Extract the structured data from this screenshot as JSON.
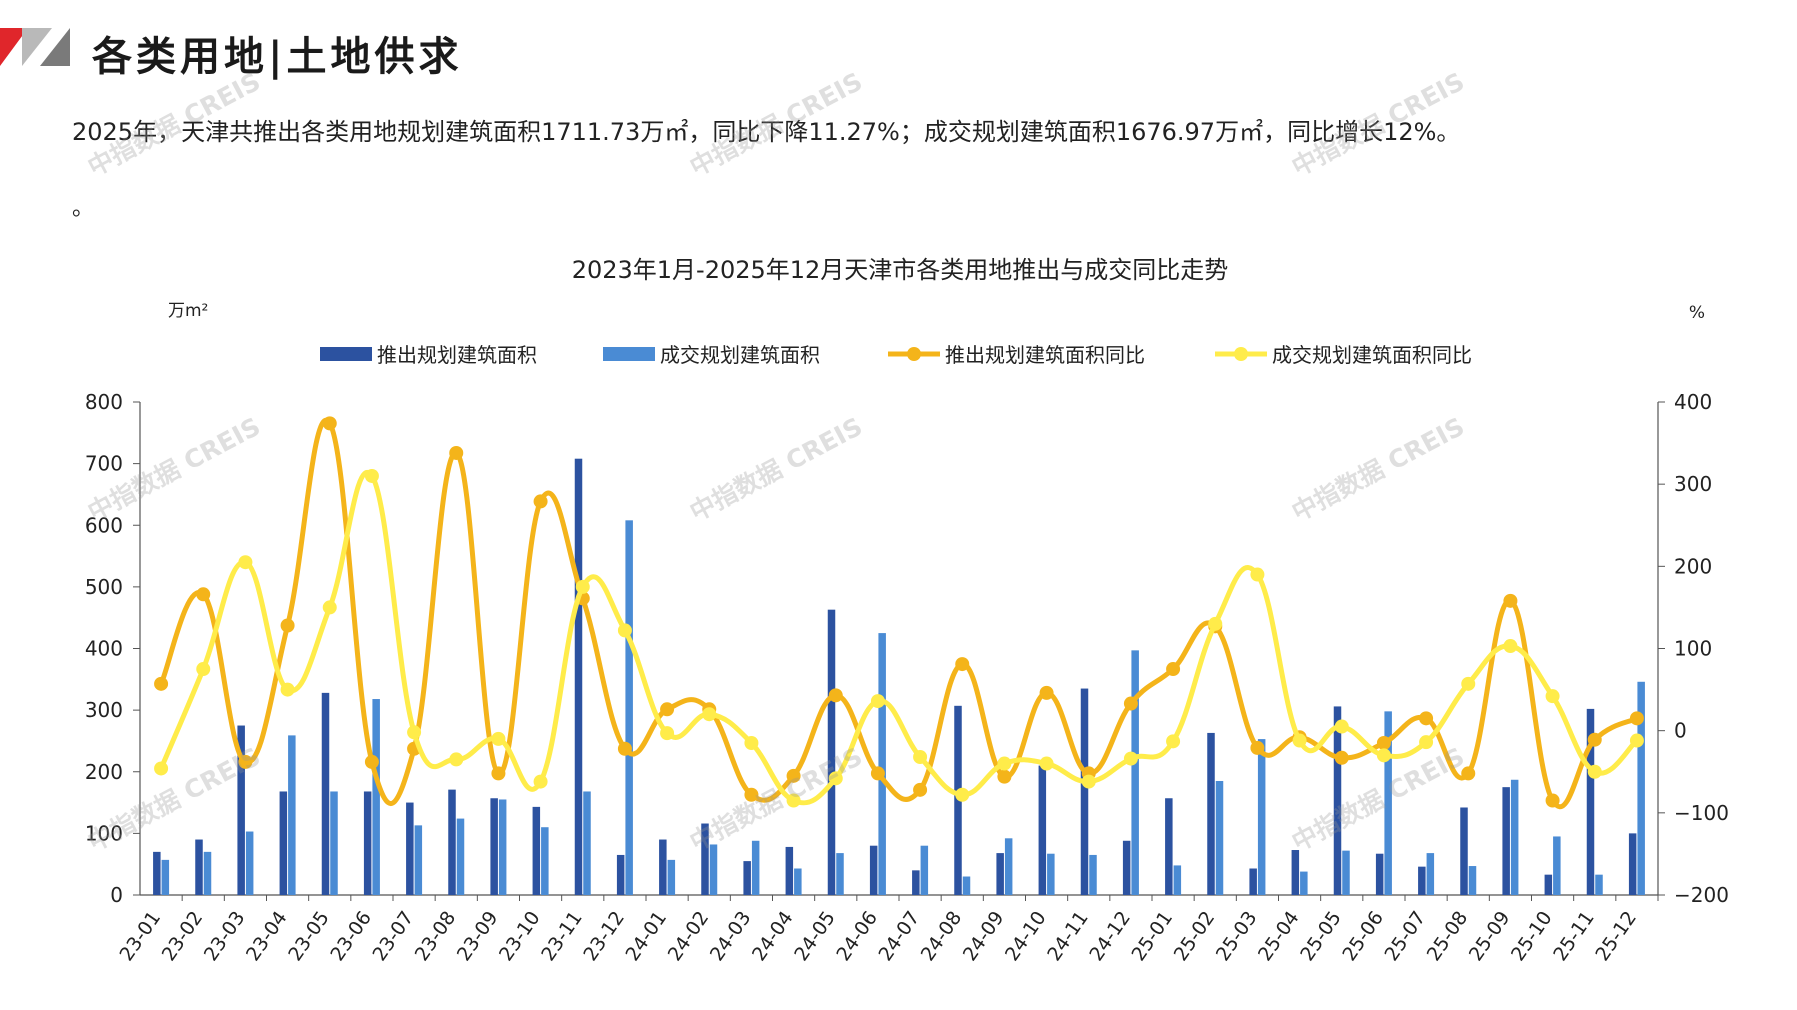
{
  "header": {
    "title": "各类用地|土地供求"
  },
  "summary": "2025年，天津共推出各类用地规划建筑面积1711.73万㎡，同比下降11.27%；成交规划建筑面积1676.97万㎡，同比增长12%。",
  "summary_tail": "。",
  "watermark": "中指数据 CREIS",
  "colors": {
    "supply_bar": "#2c52a0",
    "deal_bar": "#4a8bd4",
    "supply_yoy": "#f4b41a",
    "deal_yoy": "#ffec4a",
    "brand_red": "#e0262b"
  },
  "chart_data": {
    "type": "bar",
    "title": "2023年1月-2025年12月天津市各类用地推出与成交同比走势",
    "ylabel_left": "万m²",
    "ylabel_right": "%",
    "ylim_left": [
      0,
      800
    ],
    "yticks_left": [
      0,
      100,
      200,
      300,
      400,
      500,
      600,
      700,
      800
    ],
    "ylim_right": [
      -200,
      400
    ],
    "yticks_right": [
      -200,
      -100,
      0,
      100,
      200,
      300,
      400
    ],
    "legend_position": "top",
    "grid": false,
    "categories": [
      "23-01",
      "23-02",
      "23-03",
      "23-04",
      "23-05",
      "23-06",
      "23-07",
      "23-08",
      "23-09",
      "23-10",
      "23-11",
      "23-12",
      "24-01",
      "24-02",
      "24-03",
      "24-04",
      "24-05",
      "24-06",
      "24-07",
      "24-08",
      "24-09",
      "24-10",
      "24-11",
      "24-12",
      "25-01",
      "25-02",
      "25-03",
      "25-04",
      "25-05",
      "25-06",
      "25-07",
      "25-08",
      "25-09",
      "25-10",
      "25-11",
      "25-12"
    ],
    "series": [
      {
        "name": "推出规划建筑面积",
        "type": "bar",
        "axis": "left",
        "values": [
          70,
          90,
          275,
          168,
          328,
          168,
          150,
          171,
          157,
          143,
          708,
          65,
          90,
          116,
          55,
          78,
          463,
          80,
          40,
          307,
          68,
          210,
          335,
          88,
          157,
          263,
          43,
          73,
          306,
          67,
          46,
          142,
          175,
          33,
          302,
          100
        ]
      },
      {
        "name": "成交规划建筑面积",
        "type": "bar",
        "axis": "left",
        "values": [
          57,
          70,
          103,
          259,
          168,
          318,
          113,
          124,
          155,
          110,
          168,
          608,
          57,
          82,
          88,
          43,
          68,
          425,
          80,
          30,
          92,
          67,
          65,
          397,
          48,
          185,
          253,
          38,
          72,
          298,
          68,
          47,
          187,
          95,
          33,
          346
        ]
      },
      {
        "name": "推出规划建筑面积同比",
        "type": "line",
        "axis": "right",
        "values": [
          57,
          166,
          -38,
          128,
          374,
          -38,
          -22,
          338,
          -52,
          279,
          161,
          -22,
          26,
          26,
          -78,
          -55,
          43,
          -52,
          -72,
          81,
          -56,
          46,
          -52,
          33,
          75,
          127,
          -21,
          -8,
          -33,
          -15,
          15,
          -52,
          158,
          -85,
          -11,
          15
        ]
      },
      {
        "name": "成交规划建筑面积同比",
        "type": "line",
        "axis": "right",
        "values": [
          -46,
          75,
          205,
          50,
          150,
          310,
          -2,
          -35,
          -10,
          -62,
          175,
          122,
          -3,
          20,
          -15,
          -85,
          -58,
          36,
          -32,
          -78,
          -40,
          -40,
          -62,
          -34,
          -13,
          130,
          190,
          -12,
          5,
          -30,
          -14,
          57,
          103,
          42,
          -50,
          -12
        ]
      }
    ]
  }
}
